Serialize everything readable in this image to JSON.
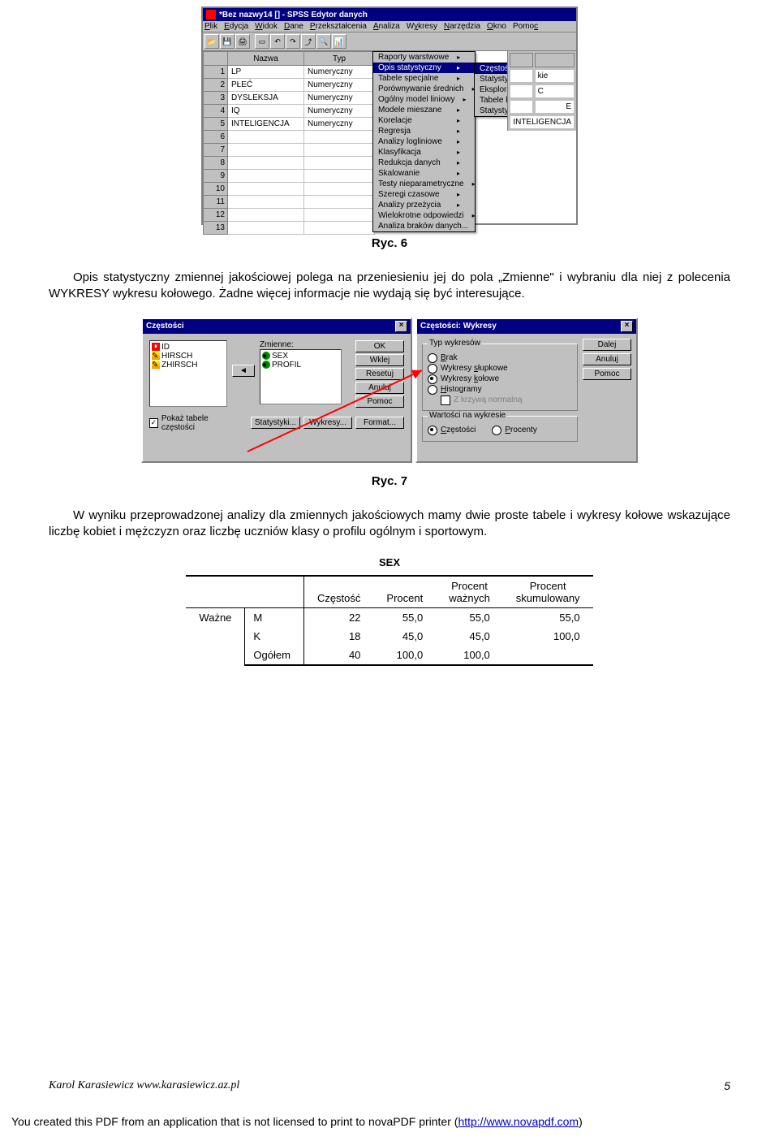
{
  "spss": {
    "title": "*Bez nazwy14 [] - SPSS Edytor danych",
    "menu": [
      "Plik",
      "Edycja",
      "Widok",
      "Dane",
      "Przekształcenia",
      "Analiza",
      "Wykresy",
      "Narzędzia",
      "Okno",
      "Pomoc"
    ],
    "menu_accel": [
      "P",
      "E",
      "W",
      "D",
      "P",
      "A",
      "W",
      "N",
      "O",
      "P"
    ],
    "grid_headers": [
      "Nazwa",
      "Typ"
    ],
    "rows": [
      {
        "n": "1",
        "nazwa": "LP",
        "typ": "Numeryczny"
      },
      {
        "n": "2",
        "nazwa": "PŁEĆ",
        "typ": "Numeryczny"
      },
      {
        "n": "3",
        "nazwa": "DYSLEKSJA",
        "typ": "Numeryczny"
      },
      {
        "n": "4",
        "nazwa": "IQ",
        "typ": "Numeryczny"
      },
      {
        "n": "5",
        "nazwa": "INTELIGENCJA",
        "typ": "Numeryczny"
      },
      {
        "n": "6",
        "nazwa": "",
        "typ": ""
      },
      {
        "n": "7",
        "nazwa": "",
        "typ": ""
      },
      {
        "n": "8",
        "nazwa": "",
        "typ": ""
      },
      {
        "n": "9",
        "nazwa": "",
        "typ": ""
      },
      {
        "n": "10",
        "nazwa": "",
        "typ": ""
      },
      {
        "n": "11",
        "nazwa": "",
        "typ": ""
      },
      {
        "n": "12",
        "nazwa": "",
        "typ": ""
      },
      {
        "n": "13",
        "nazwa": "",
        "typ": ""
      }
    ],
    "dd_analiza": [
      "Raporty warstwowe",
      "Opis statystyczny",
      "Tabele specjalne",
      "Porównywanie średnich",
      "Ogólny model liniowy",
      "Modele mieszane",
      "Korelacje",
      "Regresja",
      "Analizy logliniowe",
      "Klasyfikacja",
      "Redukcja danych",
      "Skalowanie",
      "Testy nieparametryczne",
      "Szeregi czasowe",
      "Analizy przeżycia",
      "Wielokrotne odpowiedzi",
      "Analiza braków danych..."
    ],
    "dd_opis": [
      "Częstości...",
      "Statystyki opisowe...",
      "Eksploracja...",
      "Tabele krzyżowe...",
      "Statystyki ilorazowe..."
    ],
    "float_cells": [
      "kie",
      "C",
      "E",
      "INTELIGENCJA"
    ]
  },
  "fig6": "Ryc. 6",
  "para1": "Opis statystyczny zmiennej jakościowej polega na przeniesieniu jej do pola „Zmienne\" i wybraniu dla niej z polecenia WYKRESY wykresu kołowego. Żadne więcej informacje nie wydają się być interesujące.",
  "dlg_freq": {
    "title": "Częstości",
    "left_list": [
      "ID",
      "HIRSCH",
      "ZHIRSCH"
    ],
    "right_label": "Zmienne:",
    "right_list": [
      "SEX",
      "PROFIL"
    ],
    "btns": [
      "OK",
      "Wklej",
      "Resetuj",
      "Anuluj",
      "Pomoc"
    ],
    "check": "Pokaż tabele częstości",
    "bottom_btns": [
      "Statystyki...",
      "Wykresy...",
      "Format..."
    ],
    "move_btn": "◄"
  },
  "dlg_chart": {
    "title": "Częstości: Wykresy",
    "group1": "Typ wykresów",
    "radios1": [
      "Brak",
      "Wykresy słupkowe",
      "Wykresy kołowe",
      "Histogramy"
    ],
    "zkrzywa": "Z krzywą normalną",
    "group2": "Wartości na wykresie",
    "radios2": [
      "Częstości",
      "Procenty"
    ],
    "btns": [
      "Dalej",
      "Anuluj",
      "Pomoc"
    ]
  },
  "fig7": "Ryc. 7",
  "para2": "W wyniku przeprowadzonej analizy dla zmiennych jakościowych mamy dwie proste tabele i wykresy kołowe wskazujące liczbę kobiet  i mężczyzn oraz liczbę uczniów klasy o profilu ogólnym i sportowym.",
  "sex": {
    "title": "SEX",
    "headers": [
      "Częstość",
      "Procent",
      "Procent ważnych",
      "Procent skumulowany"
    ],
    "group": "Ważne",
    "rows": [
      {
        "cat": "M",
        "v": [
          "22",
          "55,0",
          "55,0",
          "55,0"
        ]
      },
      {
        "cat": "K",
        "v": [
          "18",
          "45,0",
          "45,0",
          "100,0"
        ]
      },
      {
        "cat": "Ogółem",
        "v": [
          "40",
          "100,0",
          "100,0",
          ""
        ]
      }
    ]
  },
  "footer": {
    "author": "Karol Karasiewicz www.karasiewicz.az.pl",
    "page": "5",
    "banner_text": "You created this PDF from an application that is not licensed to print to novaPDF printer (",
    "banner_link": "http://www.novapdf.com",
    "banner_end": ")"
  }
}
